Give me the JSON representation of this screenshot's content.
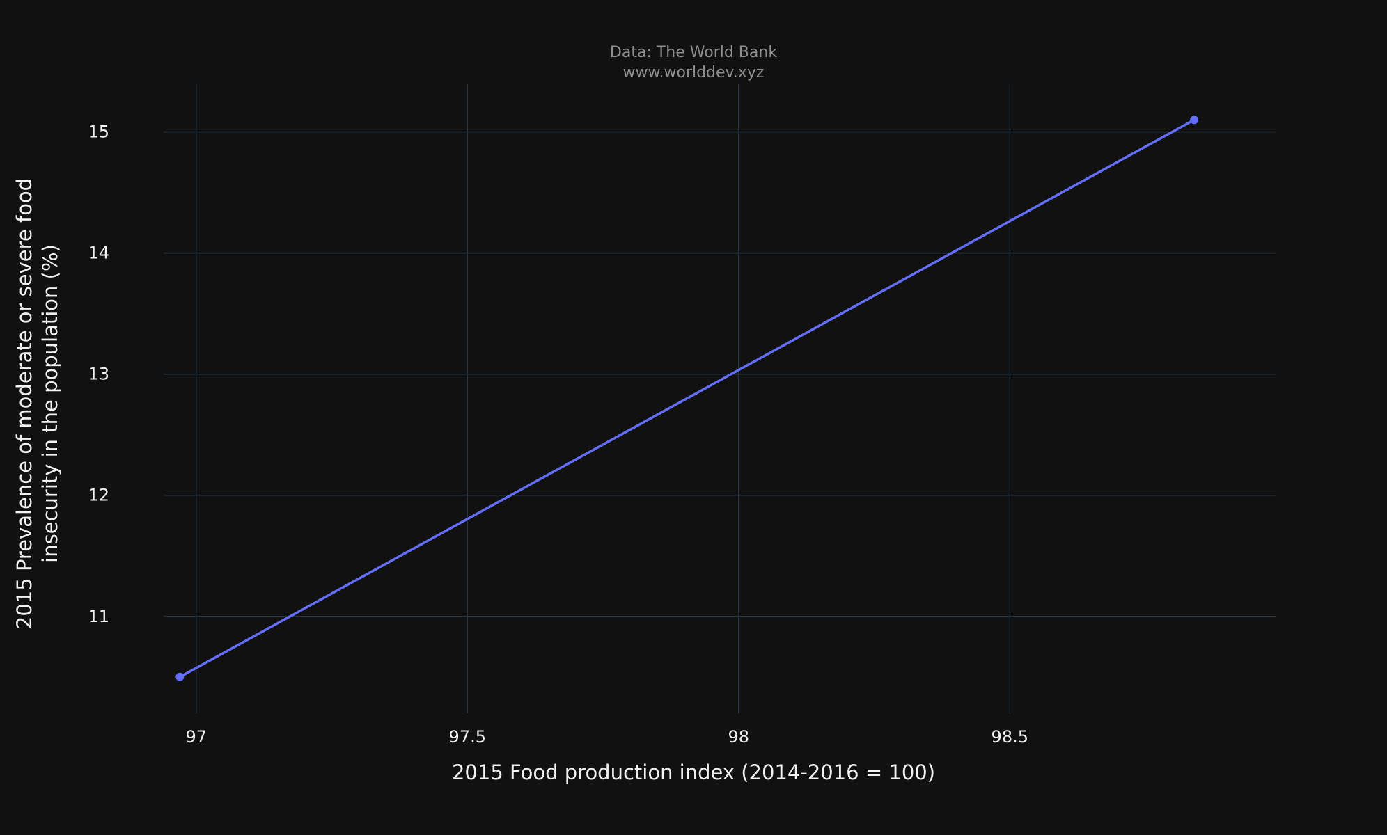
{
  "chart_data": {
    "type": "line",
    "title": "",
    "source_lines": [
      "Data: The World Bank",
      "www.worlddev.xyz"
    ],
    "xlabel": "2015 Food production index (2014-2016 = 100)",
    "ylabel_lines": [
      "2015 Prevalence of moderate or severe food",
      "insecurity in the population (%)"
    ],
    "x_ticks": [
      {
        "value": 97,
        "label": "97"
      },
      {
        "value": 97.5,
        "label": "97.5"
      },
      {
        "value": 98,
        "label": "98"
      },
      {
        "value": 98.5,
        "label": "98.5"
      }
    ],
    "y_ticks": [
      {
        "value": 11,
        "label": "11"
      },
      {
        "value": 12,
        "label": "12"
      },
      {
        "value": 13,
        "label": "13"
      },
      {
        "value": 14,
        "label": "14"
      },
      {
        "value": 15,
        "label": "15"
      }
    ],
    "xlim": [
      96.94,
      98.99
    ],
    "ylim": [
      10.2,
      15.4
    ],
    "grid": true,
    "series": [
      {
        "color": "#636efa",
        "points": [
          {
            "x": 96.97,
            "y": 10.5
          },
          {
            "x": 98.84,
            "y": 15.1
          }
        ]
      }
    ]
  },
  "colors": {
    "background": "#111111",
    "grid": "#283442",
    "text": "#f2f2f2",
    "source_text": "#8f8f8f",
    "series": "#636efa"
  }
}
